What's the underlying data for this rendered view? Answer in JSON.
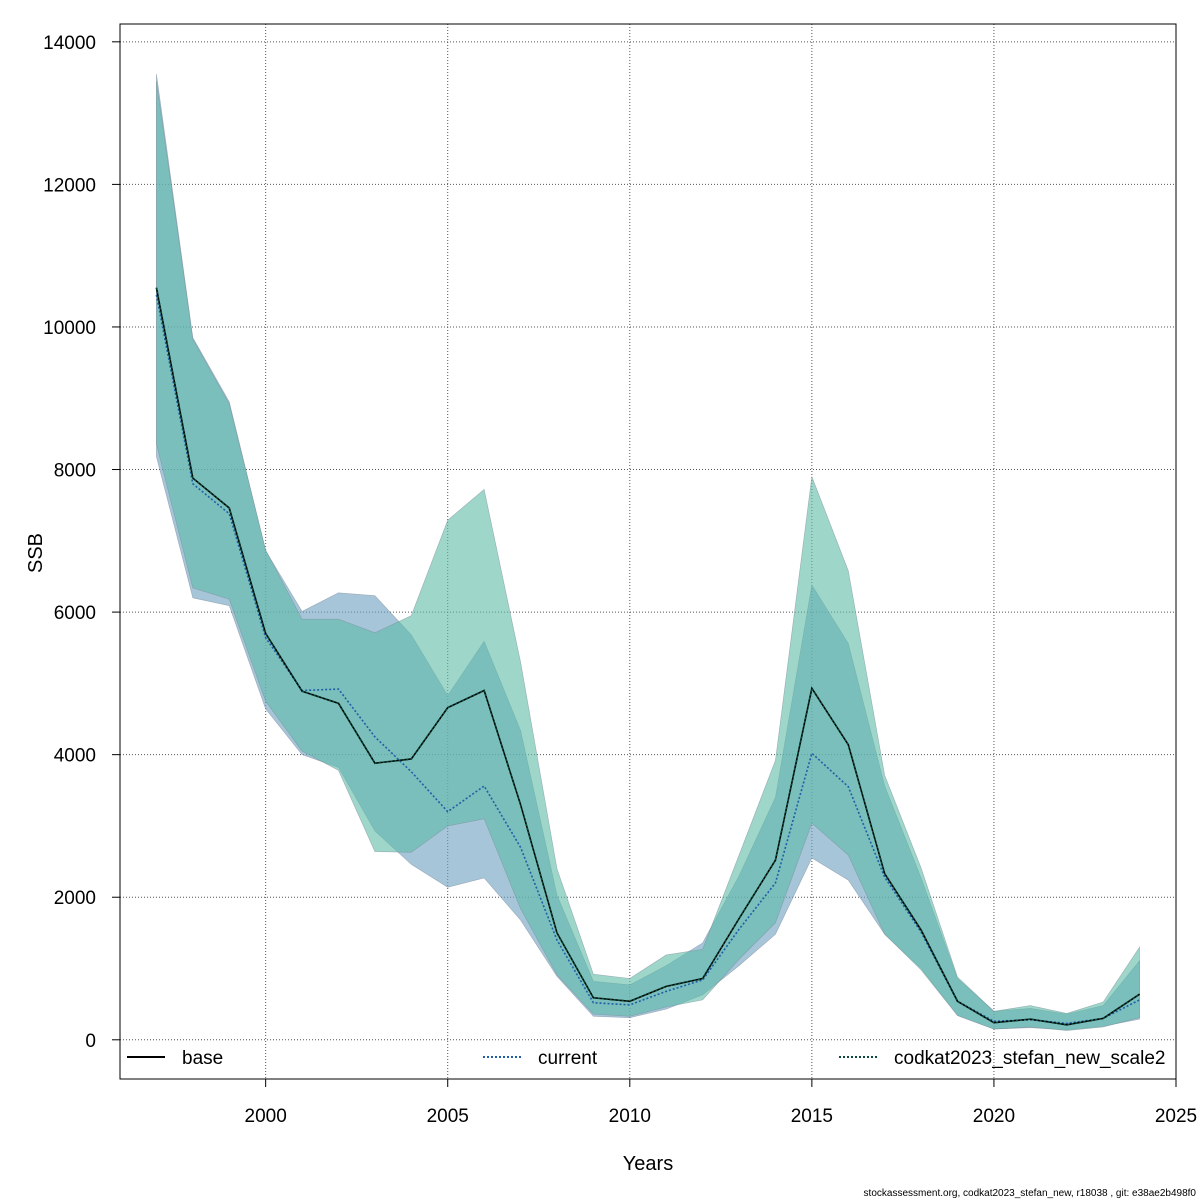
{
  "chart_data": {
    "type": "line",
    "title": "",
    "xlabel": "Years",
    "ylabel": "SSB",
    "xlim": [
      1996,
      2025
    ],
    "ylim": [
      -550,
      14250
    ],
    "x_ticks": [
      2000,
      2005,
      2010,
      2015,
      2020,
      2025
    ],
    "y_ticks": [
      0,
      2000,
      4000,
      6000,
      8000,
      10000,
      12000,
      14000
    ],
    "grid": true,
    "legend_position": "bottom",
    "x": [
      1997,
      1998,
      1999,
      2000,
      2001,
      2002,
      2003,
      2004,
      2005,
      2006,
      2007,
      2008,
      2009,
      2010,
      2011,
      2012,
      2013,
      2014,
      2015,
      2016,
      2017,
      2018,
      2019,
      2020,
      2021,
      2022,
      2023,
      2024
    ],
    "series": [
      {
        "name": "base",
        "line_style": "solid",
        "color": "#000000",
        "values": [
          10550,
          7880,
          7460,
          5700,
          4890,
          4720,
          3880,
          3940,
          4660,
          4900,
          3300,
          1500,
          590,
          540,
          750,
          860,
          1700,
          2520,
          4930,
          4140,
          2330,
          1540,
          540,
          240,
          290,
          210,
          300,
          640
        ]
      },
      {
        "name": "current",
        "line_style": "dotted",
        "color": "#1f5fa8",
        "band_color": "#6b9ebf",
        "values": [
          10450,
          7800,
          7380,
          5640,
          4900,
          4920,
          4250,
          3760,
          3200,
          3560,
          2700,
          1400,
          520,
          490,
          680,
          840,
          1550,
          2200,
          4020,
          3550,
          2280,
          1510,
          540,
          260,
          280,
          230,
          300,
          560
        ],
        "upper": [
          13550,
          9850,
          8950,
          6860,
          6010,
          6270,
          6230,
          5680,
          4830,
          5590,
          4340,
          2030,
          820,
          770,
          1040,
          1360,
          2300,
          3400,
          6380,
          5560,
          3560,
          2270,
          860,
          400,
          440,
          360,
          480,
          1110
        ],
        "lower": [
          8180,
          6200,
          6090,
          4640,
          4000,
          3820,
          2930,
          2460,
          2140,
          2270,
          1680,
          890,
          330,
          310,
          430,
          630,
          1040,
          1480,
          2550,
          2240,
          1480,
          1000,
          340,
          150,
          170,
          140,
          190,
          290
        ]
      },
      {
        "name": "codkat2023_stefan_new_scale2",
        "line_style": "dotted",
        "color": "#0b4a3c",
        "band_color": "#5dbaa6",
        "values": [
          10550,
          7880,
          7460,
          5700,
          4890,
          4720,
          3880,
          3940,
          4660,
          4900,
          3300,
          1500,
          590,
          540,
          750,
          860,
          1700,
          2520,
          4930,
          4140,
          2330,
          1540,
          540,
          240,
          290,
          210,
          300,
          640
        ],
        "upper": [
          13450,
          9830,
          8920,
          6870,
          5900,
          5900,
          5710,
          5950,
          7290,
          7720,
          5300,
          2400,
          920,
          860,
          1190,
          1270,
          2590,
          3920,
          7900,
          6580,
          3710,
          2410,
          880,
          400,
          480,
          370,
          530,
          1300
        ],
        "lower": [
          8360,
          6340,
          6180,
          4750,
          4050,
          3780,
          2640,
          2630,
          3000,
          3100,
          1840,
          910,
          360,
          330,
          460,
          560,
          1130,
          1640,
          3040,
          2590,
          1480,
          980,
          340,
          150,
          180,
          130,
          180,
          310
        ]
      }
    ]
  },
  "footer_text": "stockassessment.org, codkat2023_stefan_new, r18038 , git: e38ae2b498f0"
}
